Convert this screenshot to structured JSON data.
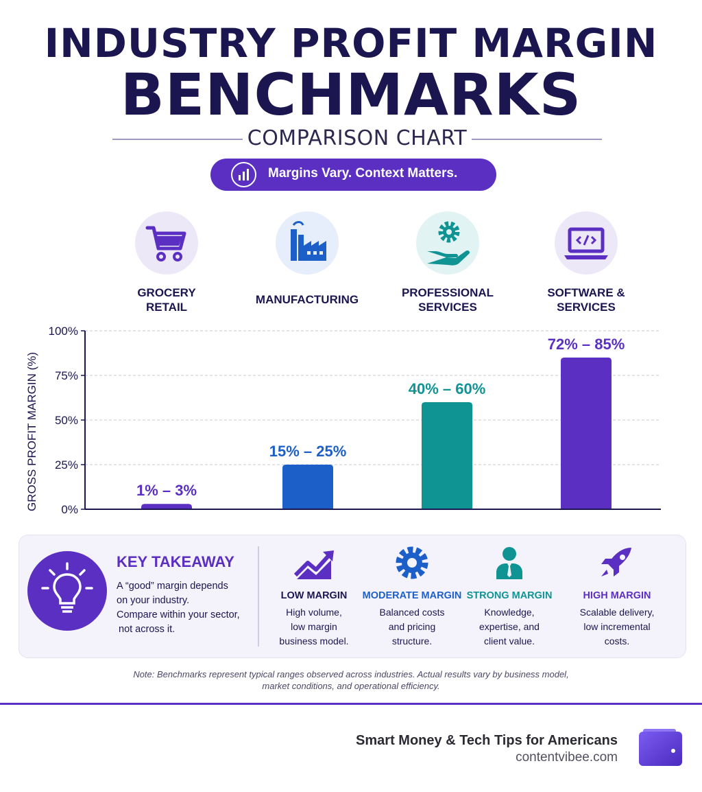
{
  "header": {
    "title_line1": "INDUSTRY PROFIT MARGIN",
    "title_line2": "BENCHMARKS",
    "subtitle": "COMPARISON CHART",
    "tagline": "Margins Vary. Context Matters."
  },
  "categories": [
    {
      "label": "GROCERY\nRETAIL",
      "icon": "shopping-cart-icon"
    },
    {
      "label": "MANUFACTURING",
      "icon": "factory-icon"
    },
    {
      "label": "PROFESSIONAL\nSERVICES",
      "icon": "gear-hand-icon"
    },
    {
      "label": "SOFTWARE &\nSERVICES",
      "icon": "laptop-code-icon"
    }
  ],
  "chart_data": {
    "type": "bar",
    "categories": [
      "GROCERY RETAIL",
      "MANUFACTURING",
      "PROFESSIONAL SERVICES",
      "SOFTWARE & SERVICES"
    ],
    "values": [
      3,
      25,
      60,
      85
    ],
    "ranges": [
      [
        1,
        3
      ],
      [
        15,
        25
      ],
      [
        40,
        60
      ],
      [
        72,
        85
      ]
    ],
    "data_labels": [
      "1% – 3%",
      "15% – 25%",
      "40% – 60%",
      "72% – 85%"
    ],
    "colors": [
      "#5a2fc2",
      "#1d5fc9",
      "#0f9393",
      "#5a2fc2"
    ],
    "ylabel": "GROSS PROFIT MARGIN (%)",
    "xlabel": "",
    "yticks": [
      "0%",
      "25%",
      "50%",
      "75%",
      "100%"
    ],
    "ylim": [
      0,
      100
    ],
    "grid": true
  },
  "takeaway": {
    "title": "KEY TAKEAWAY",
    "lines": [
      "A “good” margin depends",
      "on your industry.",
      "Compare within your sector,",
      " not across it."
    ]
  },
  "tiers": [
    {
      "name": "LOW MARGIN",
      "color": "#1b1550",
      "icon": "trend-up-icon",
      "lines": [
        "High volume,",
        "low margin",
        "business model."
      ]
    },
    {
      "name": "MODERATE MARGIN",
      "color": "#1d5fc9",
      "icon": "gear-icon",
      "lines": [
        "Balanced costs",
        "and pricing",
        "structure."
      ]
    },
    {
      "name": "STRONG MARGIN",
      "color": "#0f9393",
      "icon": "person-icon",
      "lines": [
        "Knowledge,",
        "expertise, and",
        "client value."
      ]
    },
    {
      "name": "HIGH MARGIN",
      "color": "#5a2fc2",
      "icon": "rocket-icon",
      "lines": [
        "Scalable delivery,",
        "low incremental",
        "costs."
      ]
    }
  ],
  "note": {
    "line1": "Note: Benchmarks represent typical ranges observed across industries. Actual results vary by business model,",
    "line2": "market conditions, and operational efficiency."
  },
  "footer": {
    "brand": "Smart Money & Tech Tips for Americans",
    "url": "contentvibee.com"
  }
}
